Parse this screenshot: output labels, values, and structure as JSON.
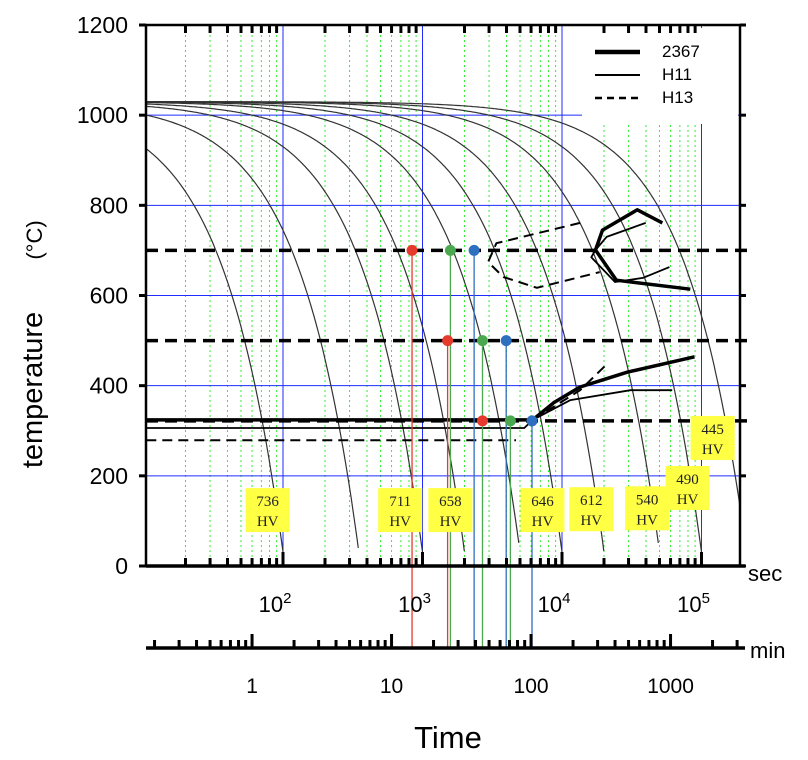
{
  "chart_data": {
    "type": "line",
    "title": "",
    "xlabel": "Time",
    "ylabel": "temperature",
    "ylabel_unit": "(°C)",
    "ylim": [
      0,
      1200
    ],
    "yticks": [
      "0",
      "200",
      "400",
      "600",
      "800",
      "1000",
      "1200"
    ],
    "x_scale": "log10 seconds",
    "xlim_log10_sec": [
      1.02,
      5.28
    ],
    "sec_axis": {
      "unit_label": "sec",
      "ticks": [
        {
          "base": "10",
          "exp": "2",
          "log10": 2
        },
        {
          "base": "10",
          "exp": "3",
          "log10": 3
        },
        {
          "base": "10",
          "exp": "4",
          "log10": 4
        },
        {
          "base": "10",
          "exp": "5",
          "log10": 5
        }
      ]
    },
    "min_axis": {
      "unit_label": "min",
      "ticks": [
        {
          "label": "1",
          "minutes": 1
        },
        {
          "label": "10",
          "minutes": 10
        },
        {
          "label": "100",
          "minutes": 100
        },
        {
          "label": "1000",
          "minutes": 1000
        }
      ]
    },
    "grid": true,
    "legend": {
      "placement": "top-right",
      "entries": [
        {
          "label": "2367",
          "style": "thick"
        },
        {
          "label": "H11",
          "style": "solid"
        },
        {
          "label": "H13",
          "style": "dashed"
        }
      ]
    },
    "cooling_curves": {
      "start_temp": 1030,
      "end_time_sec": [
        100,
        350,
        1000,
        2000,
        5000,
        10000,
        20000,
        50000,
        100000,
        210000
      ]
    },
    "transformation_curves": [
      {
        "name": "2367-pearlite",
        "style": "thick",
        "points_log10_sec": [
          [
            4.92,
            614
          ],
          [
            4.39,
            634
          ],
          [
            4.24,
            701
          ],
          [
            4.29,
            745
          ],
          [
            4.54,
            790
          ],
          [
            4.72,
            761
          ]
        ]
      },
      {
        "name": "H11-pearlite",
        "style": "solid",
        "points_log10_sec": [
          [
            4.6,
            761
          ],
          [
            4.32,
            730
          ],
          [
            4.24,
            701
          ],
          [
            4.21,
            685
          ],
          [
            4.38,
            630
          ],
          [
            4.58,
            639
          ],
          [
            4.77,
            663
          ]
        ]
      },
      {
        "name": "H13-pearlite",
        "style": "dashed",
        "points_log10_sec": [
          [
            4.13,
            761
          ],
          [
            3.53,
            716
          ],
          [
            3.47,
            674
          ],
          [
            3.58,
            641
          ],
          [
            3.82,
            617
          ],
          [
            4.27,
            652
          ]
        ]
      },
      {
        "name": "2367-bainite",
        "style": "thick",
        "points_log10_sec": [
          [
            1.02,
            324
          ],
          [
            3.79,
            324
          ],
          [
            3.94,
            362
          ],
          [
            4.13,
            397
          ],
          [
            4.47,
            430
          ],
          [
            4.95,
            464
          ]
        ]
      },
      {
        "name": "H11-bainite",
        "style": "solid",
        "points_log10_sec": [
          [
            1.02,
            306
          ],
          [
            3.73,
            306
          ],
          [
            3.79,
            324
          ],
          [
            4.06,
            368
          ],
          [
            4.49,
            390
          ],
          [
            4.79,
            390
          ]
        ]
      },
      {
        "name": "H13-bainite",
        "style": "dashed",
        "points_log10_sec": [
          [
            3.79,
            324
          ],
          [
            4.13,
            390
          ],
          [
            4.33,
            450
          ]
        ]
      },
      {
        "name": "H13-ms",
        "style": "dashed",
        "points_log10_sec": [
          [
            1.02,
            279
          ],
          [
            3.67,
            279
          ]
        ]
      }
    ],
    "reference_temps": [
      700,
      500,
      322
    ],
    "markers": [
      {
        "color": "#e63a2c",
        "log10_sec": 2.925,
        "temp": 700,
        "drop_line": true
      },
      {
        "color": "#e63a2c",
        "log10_sec": 3.18,
        "temp": 500,
        "drop_line": true
      },
      {
        "color": "#e63a2c",
        "log10_sec": 3.43,
        "temp": 322,
        "drop_line": false
      },
      {
        "color": "#4aa84f",
        "log10_sec": 3.2,
        "temp": 700,
        "drop_line": true
      },
      {
        "color": "#4aa84f",
        "log10_sec": 3.43,
        "temp": 500,
        "drop_line": true
      },
      {
        "color": "#4aa84f",
        "log10_sec": 3.63,
        "temp": 322,
        "drop_line": true
      },
      {
        "color": "#2f6fbf",
        "log10_sec": 3.37,
        "temp": 700,
        "drop_line": true
      },
      {
        "color": "#2f6fbf",
        "log10_sec": 3.6,
        "temp": 500,
        "drop_line": true
      },
      {
        "color": "#2f6fbf",
        "log10_sec": 3.785,
        "temp": 322,
        "drop_line": true
      }
    ],
    "hardness_labels": [
      {
        "value": "736",
        "unit": "HV",
        "log10_sec": 1.89,
        "temp": 124
      },
      {
        "value": "711",
        "unit": "HV",
        "log10_sec": 2.84,
        "temp": 124
      },
      {
        "value": "658",
        "unit": "HV",
        "log10_sec": 3.2,
        "temp": 124
      },
      {
        "value": "646",
        "unit": "HV",
        "log10_sec": 3.86,
        "temp": 124
      },
      {
        "value": "612",
        "unit": "HV",
        "log10_sec": 4.21,
        "temp": 126
      },
      {
        "value": "540",
        "unit": "HV",
        "log10_sec": 4.61,
        "temp": 128
      },
      {
        "value": "490",
        "unit": "HV",
        "log10_sec": 4.9,
        "temp": 173
      },
      {
        "value": "445",
        "unit": "HV",
        "log10_sec": 5.08,
        "temp": 284
      }
    ],
    "colors": {
      "grid_major": "#1f2bff",
      "grid_minor": "#33ee33",
      "label_bg": "#ffff44"
    }
  }
}
